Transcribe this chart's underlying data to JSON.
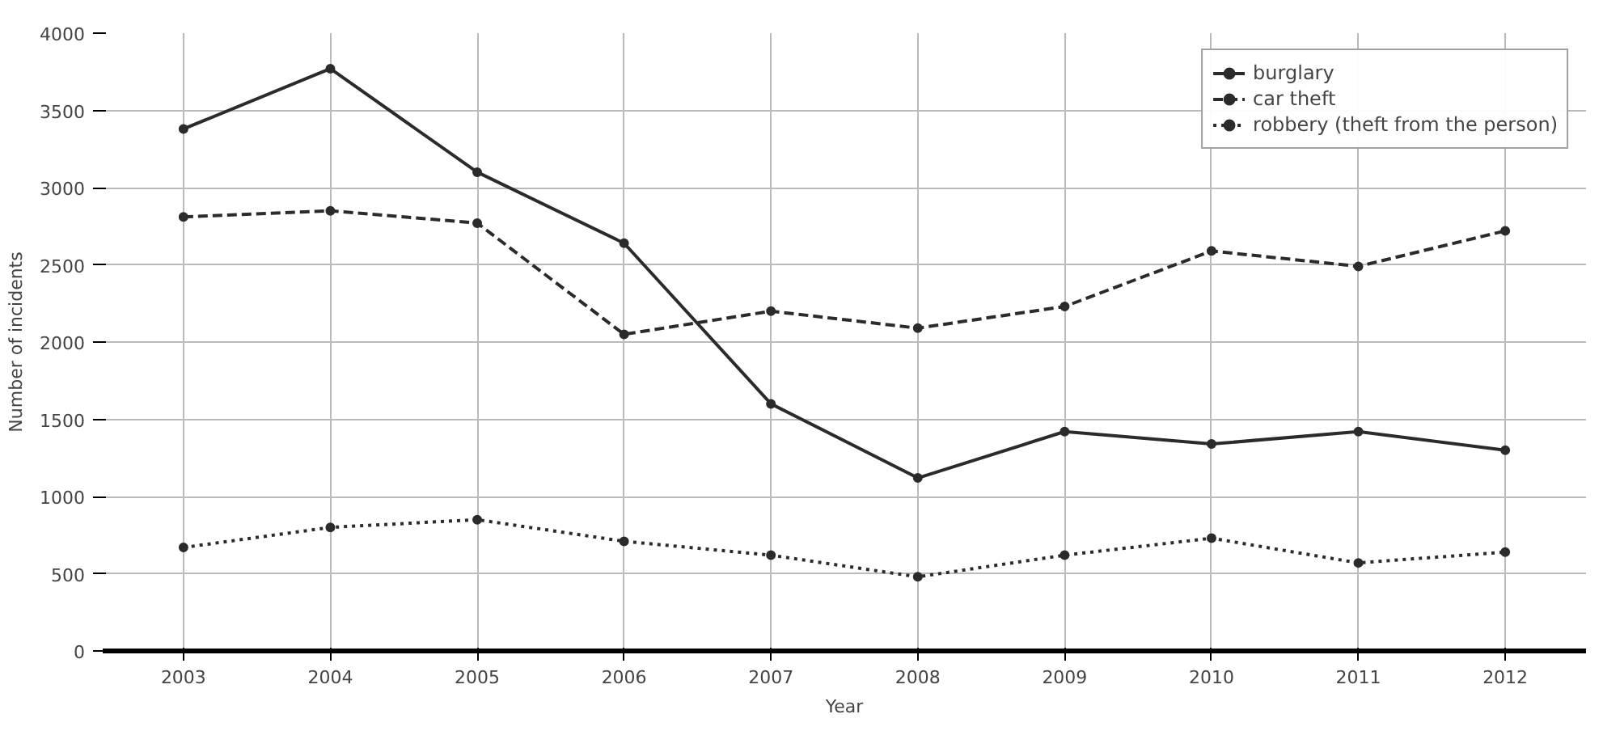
{
  "chart_data": {
    "type": "line",
    "xlabel": "Year",
    "ylabel": "Number of incidents",
    "categories": [
      "2003",
      "2004",
      "2005",
      "2006",
      "2007",
      "2008",
      "2009",
      "2010",
      "2011",
      "2012"
    ],
    "series": [
      {
        "name": "burglary",
        "color": "#2b2b2b",
        "line_style": "solid",
        "values": [
          3380,
          3770,
          3100,
          2640,
          1600,
          1120,
          1420,
          1340,
          1420,
          1300
        ]
      },
      {
        "name": "car theft",
        "color": "#2b2b2b",
        "line_style": "dashed",
        "values": [
          2810,
          2850,
          2770,
          2050,
          2200,
          2090,
          2230,
          2590,
          2490,
          2720
        ]
      },
      {
        "name": "robbery (theft from the person)",
        "color": "#2b2b2b",
        "line_style": "dotted",
        "values": [
          670,
          800,
          850,
          710,
          620,
          480,
          620,
          730,
          570,
          640
        ]
      }
    ],
    "ylim": [
      0,
      4000
    ],
    "yticks": [
      0,
      500,
      1000,
      1500,
      2000,
      2500,
      3000,
      3500,
      4000
    ],
    "grid": true,
    "legend": "top right",
    "marker": "circle"
  }
}
